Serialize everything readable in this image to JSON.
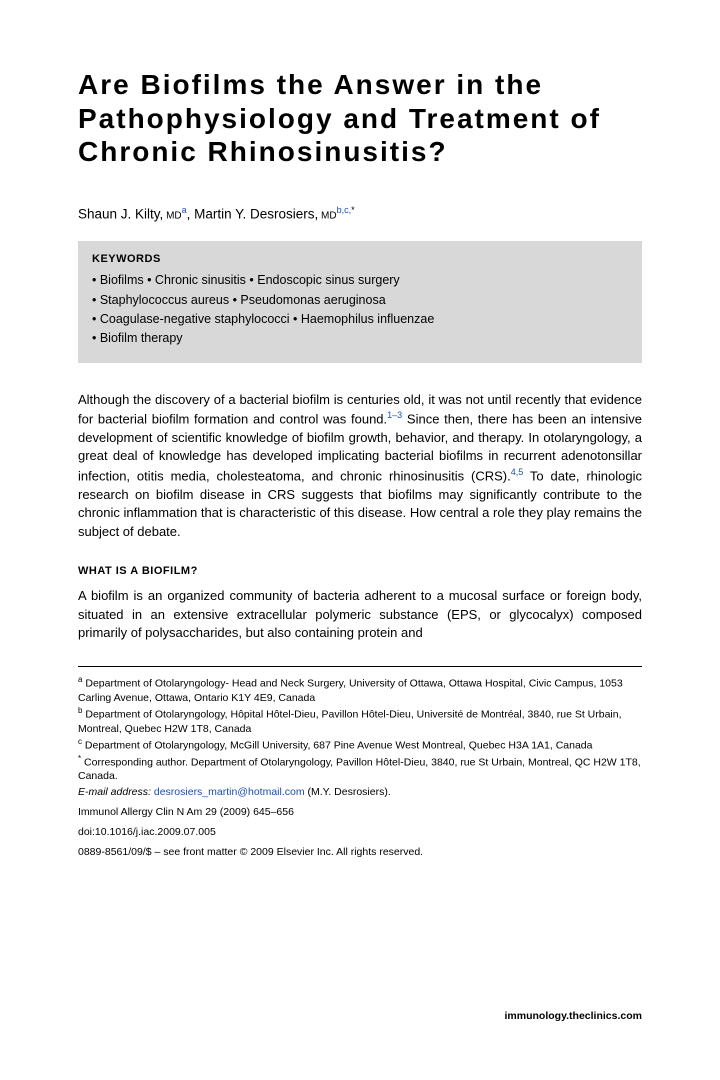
{
  "title": "Are Biofilms the Answer in the Pathophysiology and Treatment of Chronic Rhinosinusitis?",
  "authors": {
    "a1_name": "Shaun J. Kilty,",
    "a1_deg": " MD",
    "a1_sup": "a",
    "sep": ", ",
    "a2_name": "Martin Y. Desrosiers,",
    "a2_deg": " MD",
    "a2_sup": "b,c,",
    "a2_star": "*"
  },
  "keywords": {
    "head": "KEYWORDS",
    "l1": "• Biofilms • Chronic sinusitis • Endoscopic sinus surgery",
    "l2": "• Staphylococcus aureus • Pseudomonas aeruginosa",
    "l3": "• Coagulase-negative staphylococci • Haemophilus influenzae",
    "l4": "• Biofilm therapy"
  },
  "para1": {
    "t1": "Although the discovery of a bacterial biofilm is centuries old, it was not until recently that evidence for bacterial biofilm formation and control was found.",
    "s1": "1–3",
    "t2": " Since then, there has been an intensive development of scientific knowledge of biofilm growth, behavior, and therapy. In otolaryngology, a great deal of knowledge has developed implicating bacterial biofilms in recurrent adenotonsillar infection, otitis media, cholesteatoma, and chronic rhinosinusitis (CRS).",
    "s2": "4,5",
    "t3": " To date, rhinologic research on biofilm disease in CRS suggests that biofilms may significantly contribute to the chronic inflammation that is characteristic of this disease. How central a role they play remains the subject of debate."
  },
  "section2_head": "WHAT IS A BIOFILM?",
  "para2": "A biofilm is an organized community of bacteria adherent to a mucosal surface or foreign body, situated in an extensive extracellular polymeric substance (EPS, or glycocalyx) composed primarily of polysaccharides, but also containing protein and",
  "affil": {
    "a": "Department of Otolaryngology- Head and Neck Surgery, University of Ottawa, Ottawa Hospital, Civic Campus, 1053 Carling Avenue, Ottawa, Ontario K1Y 4E9, Canada",
    "b": "Department of Otolaryngology, Hôpital Hôtel-Dieu, Pavillon Hôtel-Dieu, Université de Montréal, 3840, rue St Urbain, Montreal, Quebec H2W 1T8, Canada",
    "c": "Department of Otolaryngology, McGill University, 687 Pine Avenue West Montreal, Quebec H3A 1A1, Canada",
    "star": "Corresponding author. Department of Otolaryngology, Pavillon Hôtel-Dieu, 3840, rue St Urbain, Montreal, QC H2W 1T8, Canada.",
    "email_label": "E-mail address:",
    "email": "desrosiers_martin@hotmail.com",
    "email_tail": " (M.Y. Desrosiers)."
  },
  "footer": {
    "l1": "Immunol Allergy Clin N Am 29 (2009) 645–656",
    "l2": "doi:10.1016/j.iac.2009.07.005",
    "l3": "0889-8561/09/$ – see front matter © 2009 Elsevier Inc. All rights reserved.",
    "right": "immunology.theclinics.com"
  },
  "colors": {
    "link": "#1a4fb3",
    "kwbg": "#d8d8d8"
  }
}
